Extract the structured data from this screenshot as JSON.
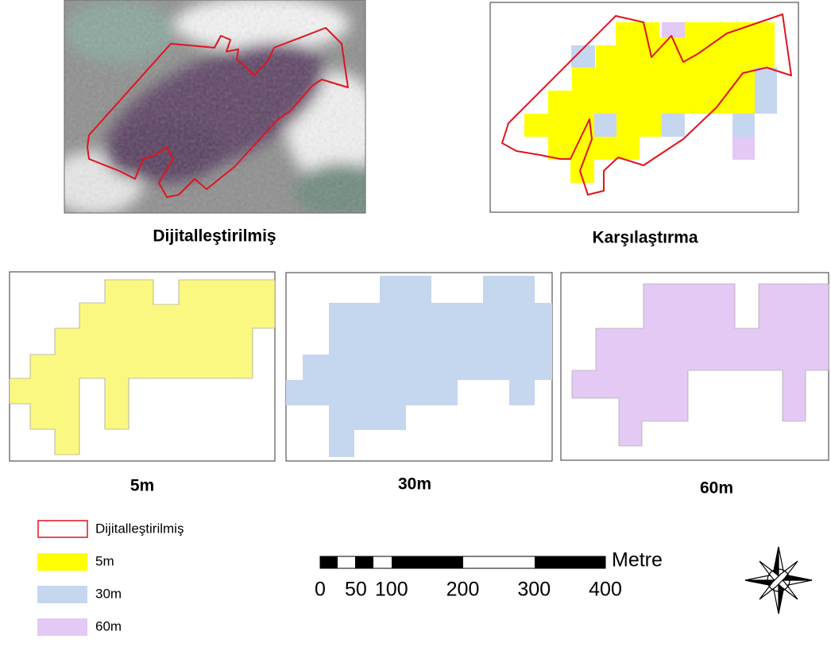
{
  "panels": [
    {
      "caption": "Dijitalleştirilmiş"
    },
    {
      "caption": "Karşılaştırma"
    },
    {
      "caption": "5m"
    },
    {
      "caption": "30m"
    },
    {
      "caption": "60m"
    }
  ],
  "legend": [
    {
      "label": "Dijitalleştirilmiş"
    },
    {
      "label": "5m"
    },
    {
      "label": "30m"
    },
    {
      "label": "60m"
    }
  ],
  "scale_bar": {
    "unit": "Metre",
    "ticks": [
      0,
      50,
      100,
      200,
      300,
      400
    ]
  }
}
